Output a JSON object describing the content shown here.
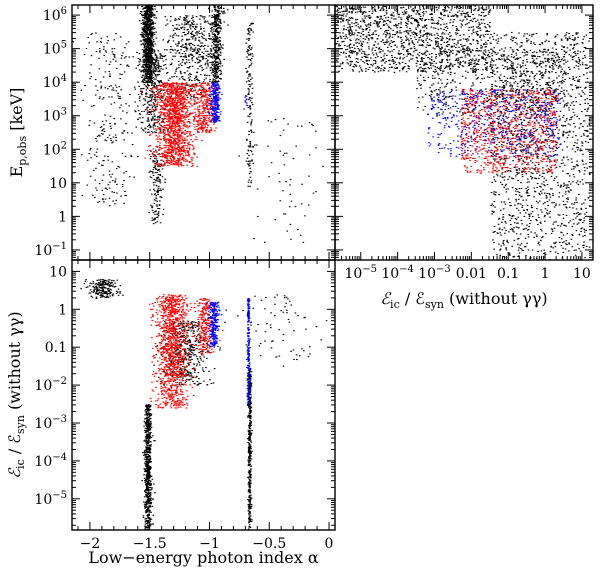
{
  "chart_data": [
    {
      "type": "scatter",
      "panel": "top-left",
      "xlabel": "",
      "ylabel": "E_{p,obs} [keV]",
      "ylabel_main": "E",
      "ylabel_sub": "p,obs",
      "ylabel_unit": " [keV]",
      "xscale": "linear",
      "xlim": [
        -2.15,
        0.05
      ],
      "yscale": "log",
      "ylim": [
        0.05,
        2000000
      ],
      "yticks": [
        {
          "v": 0.1,
          "m": "10",
          "e": "−1"
        },
        {
          "v": 1,
          "m": "1",
          "e": ""
        },
        {
          "v": 10,
          "m": "10",
          "e": ""
        },
        {
          "v": 100,
          "m": "10",
          "e": "2"
        },
        {
          "v": 1000,
          "m": "10",
          "e": "3"
        },
        {
          "v": 10000,
          "m": "10",
          "e": "4"
        },
        {
          "v": 100000,
          "m": "10",
          "e": "5"
        },
        {
          "v": 1000000,
          "m": "10",
          "e": "6"
        }
      ],
      "series": [
        {
          "name": "black",
          "color": "#000000",
          "clusters": [
            {
              "x": -1.52,
              "xspread": 0.05,
              "logy": [
                4.0,
                6.3
              ],
              "n": 900
            },
            {
              "x": -1.48,
              "xspread": 0.12,
              "logy": [
                2.5,
                5.0
              ],
              "n": 400
            },
            {
              "x": -1.15,
              "xspread": 0.2,
              "logy": [
                3.5,
                6.0
              ],
              "n": 450
            },
            {
              "x": -0.95,
              "xspread": 0.05,
              "logy": [
                4.0,
                6.3
              ],
              "n": 400
            },
            {
              "x": -1.85,
              "xspread": 0.2,
              "logy": [
                0.3,
                5.5
              ],
              "n": 250
            },
            {
              "x": -1.45,
              "xspread": 0.06,
              "logy": [
                -0.2,
                2.0
              ],
              "n": 150
            },
            {
              "x": -0.67,
              "xspread": 0.03,
              "logy": [
                0.8,
                5.8
              ],
              "n": 150
            },
            {
              "x": -0.35,
              "xspread": 0.3,
              "logy": [
                -0.8,
                3.0
              ],
              "n": 60
            }
          ]
        },
        {
          "name": "red",
          "color": "#ff0000",
          "clusters": [
            {
              "x": -1.3,
              "xspread": 0.16,
              "logy": [
                1.5,
                4.0
              ],
              "n": 1300
            },
            {
              "x": -1.05,
              "xspread": 0.1,
              "logy": [
                2.5,
                4.0
              ],
              "n": 300
            }
          ]
        },
        {
          "name": "blue",
          "color": "#0000ff",
          "clusters": [
            {
              "x": -0.96,
              "xspread": 0.04,
              "logy": [
                2.8,
                4.0
              ],
              "n": 250
            },
            {
              "x": -0.7,
              "xspread": 0.02,
              "logy": [
                3.2,
                3.6
              ],
              "n": 10
            }
          ]
        }
      ]
    },
    {
      "type": "scatter",
      "panel": "top-right",
      "xlabel": "ℰ_{ic} / ℰ_{syn} (without γγ)",
      "xlabel_main": "ℰ",
      "xlabel_sub1": "ic",
      "xlabel_mid": " / ℰ",
      "xlabel_sub2": "syn",
      "xlabel_tail": " (without γγ)",
      "ylabel": "",
      "xscale": "log",
      "xlim": [
        2e-06,
        20
      ],
      "yscale": "log",
      "ylim": [
        0.05,
        2000000
      ],
      "xticks": [
        {
          "v": 1e-05,
          "m": "10",
          "e": "−5"
        },
        {
          "v": 0.0001,
          "m": "10",
          "e": "−4"
        },
        {
          "v": 0.001,
          "m": "10",
          "e": "−3"
        },
        {
          "v": 0.01,
          "m": "0.01",
          "e": ""
        },
        {
          "v": 0.1,
          "m": "0.1",
          "e": ""
        },
        {
          "v": 1,
          "m": "1",
          "e": ""
        },
        {
          "v": 10,
          "m": "10",
          "e": ""
        }
      ],
      "series": [
        {
          "name": "black",
          "color": "#000000",
          "clusters": [
            {
              "logx": [
                -5.7,
                -1.5
              ],
              "logy": [
                4.3,
                6.3
              ],
              "n": 1300
            },
            {
              "logx": [
                -1.5,
                1.2
              ],
              "logy": [
                -1.3,
                5.5
              ],
              "n": 1500
            },
            {
              "logx": [
                -3.5,
                0.5
              ],
              "logy": [
                3.0,
                5.0
              ],
              "n": 500
            }
          ]
        },
        {
          "name": "red",
          "color": "#ff0000",
          "clusters": [
            {
              "logx": [
                -2.3,
                0.3
              ],
              "logy": [
                1.3,
                3.8
              ],
              "n": 900
            }
          ]
        },
        {
          "name": "blue",
          "color": "#0000ff",
          "clusters": [
            {
              "logx": [
                -3.2,
                0.4
              ],
              "logy": [
                1.8,
                3.8
              ],
              "n": 500
            }
          ]
        }
      ]
    },
    {
      "type": "scatter",
      "panel": "bottom-left",
      "xlabel": "Low−energy photon index α",
      "ylabel": "ℰ_{ic} / ℰ_{syn} (without γγ)",
      "ylabel_main": "ℰ",
      "ylabel_sub1": "ic",
      "ylabel_mid": " / ℰ",
      "ylabel_sub2": "syn",
      "ylabel_tail": " (without γγ)",
      "xscale": "linear",
      "xlim": [
        -2.15,
        0.05
      ],
      "yscale": "log",
      "ylim": [
        1.5e-06,
        20
      ],
      "xticks": [
        {
          "v": -2,
          "m": "−2",
          "e": ""
        },
        {
          "v": -1.5,
          "m": "−1.5",
          "e": ""
        },
        {
          "v": -1,
          "m": "−1",
          "e": ""
        },
        {
          "v": -0.5,
          "m": "−0.5",
          "e": ""
        },
        {
          "v": 0,
          "m": "0",
          "e": ""
        }
      ],
      "yticks": [
        {
          "v": 1e-05,
          "m": "10",
          "e": "−5"
        },
        {
          "v": 0.0001,
          "m": "10",
          "e": "−4"
        },
        {
          "v": 0.001,
          "m": "10",
          "e": "−3"
        },
        {
          "v": 0.01,
          "m": "10",
          "e": "−2"
        },
        {
          "v": 0.1,
          "m": "0.1",
          "e": ""
        },
        {
          "v": 1,
          "m": "1",
          "e": ""
        },
        {
          "v": 10,
          "m": "10",
          "e": ""
        }
      ],
      "series": [
        {
          "name": "black",
          "color": "#000000",
          "clusters": [
            {
              "x": -1.52,
              "xspread": 0.03,
              "logy": [
                -5.8,
                -2.5
              ],
              "n": 700
            },
            {
              "x": -0.67,
              "xspread": 0.012,
              "logy": [
                -5.8,
                -1.5
              ],
              "n": 450
            },
            {
              "x": -1.9,
              "xspread": 0.12,
              "logy": [
                0.3,
                0.8
              ],
              "n": 200
            },
            {
              "x": -1.2,
              "xspread": 0.2,
              "logy": [
                -2.0,
                -0.3
              ],
              "n": 450
            },
            {
              "x": -0.4,
              "xspread": 0.3,
              "logy": [
                -1.5,
                0.4
              ],
              "n": 70
            }
          ]
        },
        {
          "name": "red",
          "color": "#ff0000",
          "clusters": [
            {
              "x": -1.32,
              "xspread": 0.14,
              "logy": [
                -2.6,
                0.4
              ],
              "n": 1100
            },
            {
              "x": -1.05,
              "xspread": 0.08,
              "logy": [
                -1.2,
                0.3
              ],
              "n": 250
            }
          ]
        },
        {
          "name": "blue",
          "color": "#0000ff",
          "clusters": [
            {
              "x": -0.97,
              "xspread": 0.04,
              "logy": [
                -1.0,
                0.2
              ],
              "n": 250
            },
            {
              "x": -0.68,
              "xspread": 0.01,
              "logy": [
                -2.5,
                0.3
              ],
              "n": 200
            }
          ]
        }
      ]
    }
  ]
}
